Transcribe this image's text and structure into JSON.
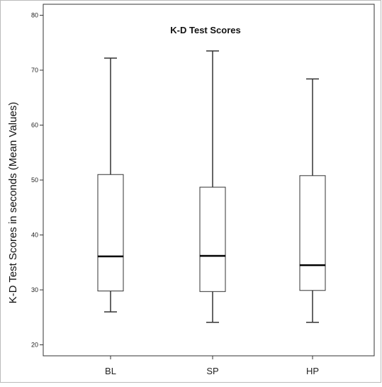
{
  "chart_data": {
    "type": "boxplot",
    "title": "K-D Test Scores",
    "xlabel": "",
    "ylabel": "K-D Test Scores in seconds (Mean Values)",
    "ylim": [
      18,
      82
    ],
    "yticks": [
      20,
      30,
      40,
      50,
      60,
      70,
      80
    ],
    "grid": false,
    "categories": [
      "BL",
      "SP",
      "HP"
    ],
    "boxes": [
      {
        "category": "BL",
        "min": 26.0,
        "q1": 29.8,
        "median": 36.1,
        "q3": 51.0,
        "max": 72.2
      },
      {
        "category": "SP",
        "min": 24.1,
        "q1": 29.7,
        "median": 36.2,
        "q3": 48.7,
        "max": 73.5
      },
      {
        "category": "HP",
        "min": 24.1,
        "q1": 29.9,
        "median": 34.5,
        "q3": 50.8,
        "max": 68.4
      }
    ],
    "colors": {
      "box_fill": "#ffffff",
      "stroke": "#333333",
      "median": "#000000"
    }
  }
}
